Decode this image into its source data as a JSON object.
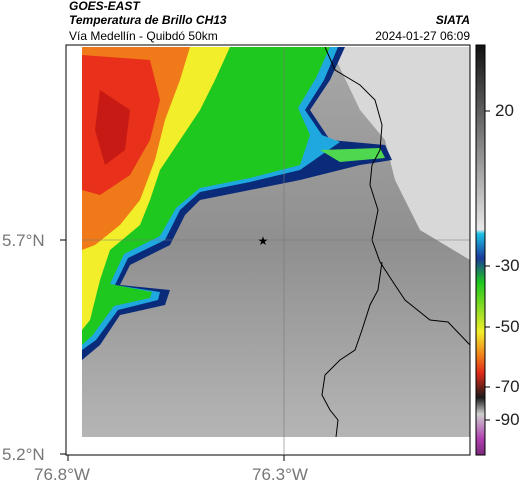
{
  "header": {
    "satellite": "GOES-EAST",
    "product": "Temperatura de Brillo CH13",
    "route": "Vía Medellín - Quibdó 50km",
    "agency": "SIATA",
    "datetime": "2024-01-27 06:09"
  },
  "axes": {
    "lat_ticks": [
      "5.7°N",
      "5.2°N"
    ],
    "lon_ticks": [
      "76.8°W",
      "76.3°W"
    ]
  },
  "colorbar": {
    "labels": [
      "20",
      "-30",
      "-50",
      "-70",
      "-90"
    ]
  },
  "map": {
    "marker": "star-icon",
    "colors": {
      "warm_gray": "#8e8e8e",
      "cold_red": "#e8301a",
      "orange": "#f07a1a",
      "yellow": "#f2ee2a",
      "green": "#1ec81e",
      "cyan": "#1fa8e0",
      "navy": "#0a2a7a",
      "boundary": "#000000"
    }
  }
}
